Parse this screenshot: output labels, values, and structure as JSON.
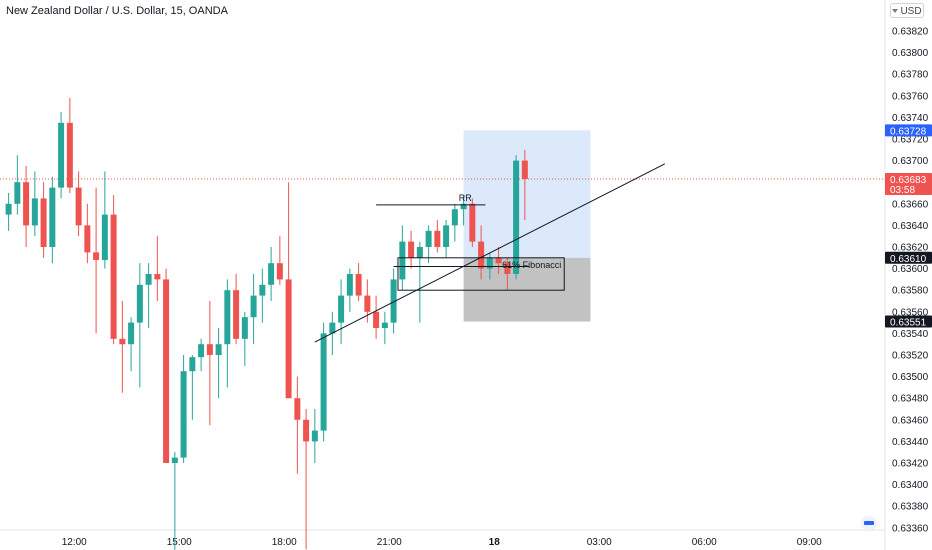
{
  "header": {
    "title": "New Zealand Dollar / U.S. Dollar, 15, OANDA",
    "currency": "USD"
  },
  "colors": {
    "up": "#26a69a",
    "down": "#ef5350",
    "long_zone": "#dbe9fb",
    "short_zone": "#c2c2c2",
    "current_price_line": "#ef5350",
    "label_blue": "#2962ff",
    "label_dark": "#131722"
  },
  "chart_data": {
    "type": "candlestick",
    "title": "New Zealand Dollar / U.S. Dollar, 15, OANDA",
    "ylim": [
      0.6335,
      0.6387
    ],
    "y_ticks": [
      0.6382,
      0.638,
      0.6378,
      0.6376,
      0.6374,
      0.6372,
      0.637,
      0.6368,
      0.6366,
      0.6364,
      0.6362,
      0.636,
      0.6358,
      0.6356,
      0.6354,
      0.6352,
      0.635,
      0.6348,
      0.6346,
      0.6344,
      0.6342,
      0.634,
      0.6338,
      0.6336
    ],
    "y_tick_labels": [
      "0.63820",
      "0.63800",
      "0.63780",
      "0.63760",
      "0.63740",
      "0.63720",
      "0.63700",
      "0.63680",
      "0.63660",
      "0.63640",
      "0.63620",
      "0.63600",
      "0.63580",
      "0.63560",
      "0.63540",
      "0.63520",
      "0.63500",
      "0.63480",
      "0.63460",
      "0.63440",
      "0.63420",
      "0.63400",
      "0.63380",
      "0.63360"
    ],
    "x_ticks": [
      {
        "label": "12:00",
        "bar": 7.5
      },
      {
        "label": "15:00",
        "bar": 19.5
      },
      {
        "label": "18:00",
        "bar": 31.5
      },
      {
        "label": "21:00",
        "bar": 43.5
      },
      {
        "label": "18",
        "bar": 55.5
      },
      {
        "label": "03:00",
        "bar": 67.5
      },
      {
        "label": "06:00",
        "bar": 79.5
      },
      {
        "label": "09:00",
        "bar": 91.5
      }
    ],
    "bars": [
      {
        "o": 0.6365,
        "h": 0.6367,
        "l": 0.63635,
        "c": 0.6366
      },
      {
        "o": 0.6366,
        "h": 0.63705,
        "l": 0.6365,
        "c": 0.6368
      },
      {
        "o": 0.6368,
        "h": 0.63695,
        "l": 0.6362,
        "c": 0.6364
      },
      {
        "o": 0.6364,
        "h": 0.6369,
        "l": 0.6363,
        "c": 0.63665
      },
      {
        "o": 0.63665,
        "h": 0.6368,
        "l": 0.6361,
        "c": 0.6362
      },
      {
        "o": 0.6362,
        "h": 0.63685,
        "l": 0.63605,
        "c": 0.63675
      },
      {
        "o": 0.63675,
        "h": 0.63745,
        "l": 0.63665,
        "c": 0.63735
      },
      {
        "o": 0.63735,
        "h": 0.63758,
        "l": 0.6367,
        "c": 0.63675
      },
      {
        "o": 0.63675,
        "h": 0.6369,
        "l": 0.6363,
        "c": 0.6364
      },
      {
        "o": 0.6364,
        "h": 0.6366,
        "l": 0.63605,
        "c": 0.63615
      },
      {
        "o": 0.63615,
        "h": 0.63675,
        "l": 0.6354,
        "c": 0.63608
      },
      {
        "o": 0.63608,
        "h": 0.6369,
        "l": 0.636,
        "c": 0.6365
      },
      {
        "o": 0.6365,
        "h": 0.63668,
        "l": 0.6353,
        "c": 0.63535
      },
      {
        "o": 0.63535,
        "h": 0.6357,
        "l": 0.63485,
        "c": 0.6353
      },
      {
        "o": 0.6353,
        "h": 0.63555,
        "l": 0.63505,
        "c": 0.6355
      },
      {
        "o": 0.6355,
        "h": 0.63605,
        "l": 0.6349,
        "c": 0.63585
      },
      {
        "o": 0.63585,
        "h": 0.63605,
        "l": 0.63545,
        "c": 0.63595
      },
      {
        "o": 0.63595,
        "h": 0.6363,
        "l": 0.6357,
        "c": 0.6359
      },
      {
        "o": 0.6359,
        "h": 0.636,
        "l": 0.6342,
        "c": 0.6342
      },
      {
        "o": 0.6342,
        "h": 0.6343,
        "l": 0.63335,
        "c": 0.63425
      },
      {
        "o": 0.63425,
        "h": 0.6352,
        "l": 0.6342,
        "c": 0.63505
      },
      {
        "o": 0.63505,
        "h": 0.6352,
        "l": 0.6346,
        "c": 0.63518
      },
      {
        "o": 0.63518,
        "h": 0.63535,
        "l": 0.63505,
        "c": 0.6353
      },
      {
        "o": 0.6353,
        "h": 0.6357,
        "l": 0.63455,
        "c": 0.6352
      },
      {
        "o": 0.6352,
        "h": 0.63545,
        "l": 0.6348,
        "c": 0.6353
      },
      {
        "o": 0.6353,
        "h": 0.6359,
        "l": 0.6349,
        "c": 0.6358
      },
      {
        "o": 0.6358,
        "h": 0.63595,
        "l": 0.6353,
        "c": 0.63535
      },
      {
        "o": 0.63535,
        "h": 0.6356,
        "l": 0.6351,
        "c": 0.63555
      },
      {
        "o": 0.63555,
        "h": 0.63595,
        "l": 0.6353,
        "c": 0.63575
      },
      {
        "o": 0.63575,
        "h": 0.636,
        "l": 0.6355,
        "c": 0.63585
      },
      {
        "o": 0.63585,
        "h": 0.6362,
        "l": 0.6357,
        "c": 0.63605
      },
      {
        "o": 0.63605,
        "h": 0.6363,
        "l": 0.63585,
        "c": 0.6359
      },
      {
        "o": 0.6359,
        "h": 0.6368,
        "l": 0.6348,
        "c": 0.6348
      },
      {
        "o": 0.6348,
        "h": 0.635,
        "l": 0.6341,
        "c": 0.6346
      },
      {
        "o": 0.6346,
        "h": 0.6347,
        "l": 0.6334,
        "c": 0.6344
      },
      {
        "o": 0.6344,
        "h": 0.6347,
        "l": 0.6342,
        "c": 0.6345
      },
      {
        "o": 0.6345,
        "h": 0.6355,
        "l": 0.6344,
        "c": 0.6354
      },
      {
        "o": 0.6354,
        "h": 0.6356,
        "l": 0.6352,
        "c": 0.6355
      },
      {
        "o": 0.6355,
        "h": 0.6359,
        "l": 0.6353,
        "c": 0.63575
      },
      {
        "o": 0.63575,
        "h": 0.636,
        "l": 0.6356,
        "c": 0.63595
      },
      {
        "o": 0.63595,
        "h": 0.63605,
        "l": 0.6357,
        "c": 0.63575
      },
      {
        "o": 0.63575,
        "h": 0.6359,
        "l": 0.6355,
        "c": 0.6356
      },
      {
        "o": 0.6356,
        "h": 0.63575,
        "l": 0.63535,
        "c": 0.63545
      },
      {
        "o": 0.63545,
        "h": 0.6356,
        "l": 0.6353,
        "c": 0.6355
      },
      {
        "o": 0.6355,
        "h": 0.636,
        "l": 0.6354,
        "c": 0.6359
      },
      {
        "o": 0.6359,
        "h": 0.6364,
        "l": 0.6358,
        "c": 0.63625
      },
      {
        "o": 0.63625,
        "h": 0.63635,
        "l": 0.636,
        "c": 0.6361
      },
      {
        "o": 0.6361,
        "h": 0.63625,
        "l": 0.6355,
        "c": 0.6362
      },
      {
        "o": 0.6362,
        "h": 0.6364,
        "l": 0.63605,
        "c": 0.63635
      },
      {
        "o": 0.63635,
        "h": 0.63645,
        "l": 0.63615,
        "c": 0.6362
      },
      {
        "o": 0.6362,
        "h": 0.63645,
        "l": 0.6361,
        "c": 0.6364
      },
      {
        "o": 0.6364,
        "h": 0.6366,
        "l": 0.63625,
        "c": 0.63655
      },
      {
        "o": 0.63655,
        "h": 0.63668,
        "l": 0.6364,
        "c": 0.6366
      },
      {
        "o": 0.6366,
        "h": 0.63665,
        "l": 0.6362,
        "c": 0.63625
      },
      {
        "o": 0.63625,
        "h": 0.6364,
        "l": 0.6359,
        "c": 0.636
      },
      {
        "o": 0.636,
        "h": 0.63615,
        "l": 0.6359,
        "c": 0.6361
      },
      {
        "o": 0.6361,
        "h": 0.6362,
        "l": 0.63595,
        "c": 0.63605
      },
      {
        "o": 0.63605,
        "h": 0.6361,
        "l": 0.6358,
        "c": 0.63595
      },
      {
        "o": 0.63595,
        "h": 0.63705,
        "l": 0.6359,
        "c": 0.637
      },
      {
        "o": 0.637,
        "h": 0.6371,
        "l": 0.63645,
        "c": 0.63683
      }
    ],
    "price_labels": [
      {
        "text": "0.63728",
        "value": 0.63728,
        "color": "#2962ff"
      },
      {
        "text": "0.63683",
        "sub": "03:58",
        "value": 0.63683,
        "color": "#ef5350"
      },
      {
        "text": "0.63610",
        "value": 0.6361,
        "color": "#131722"
      },
      {
        "text": "0.63551",
        "value": 0.63551,
        "color": "#131722"
      }
    ],
    "annotations": [
      {
        "type": "trendline",
        "from": {
          "bar": 35,
          "price": 0.63532
        },
        "to": {
          "bar": 75,
          "price": 0.63697
        }
      },
      {
        "type": "hline",
        "label": "RR",
        "from_bar": 42,
        "to_bar": 54.5,
        "price": 0.63659
      },
      {
        "type": "rect",
        "label": "61% Fibonacci",
        "from_bar": 44.5,
        "to_bar": 63.5,
        "top": 0.6361,
        "bottom": 0.6358
      },
      {
        "type": "hline",
        "from_bar": 44,
        "to_bar": 59.5,
        "price": 0.63602
      },
      {
        "type": "position",
        "from_bar": 52,
        "to_bar": 66.5,
        "target": 0.63728,
        "entry": 0.6361,
        "stop": 0.63551
      }
    ]
  }
}
